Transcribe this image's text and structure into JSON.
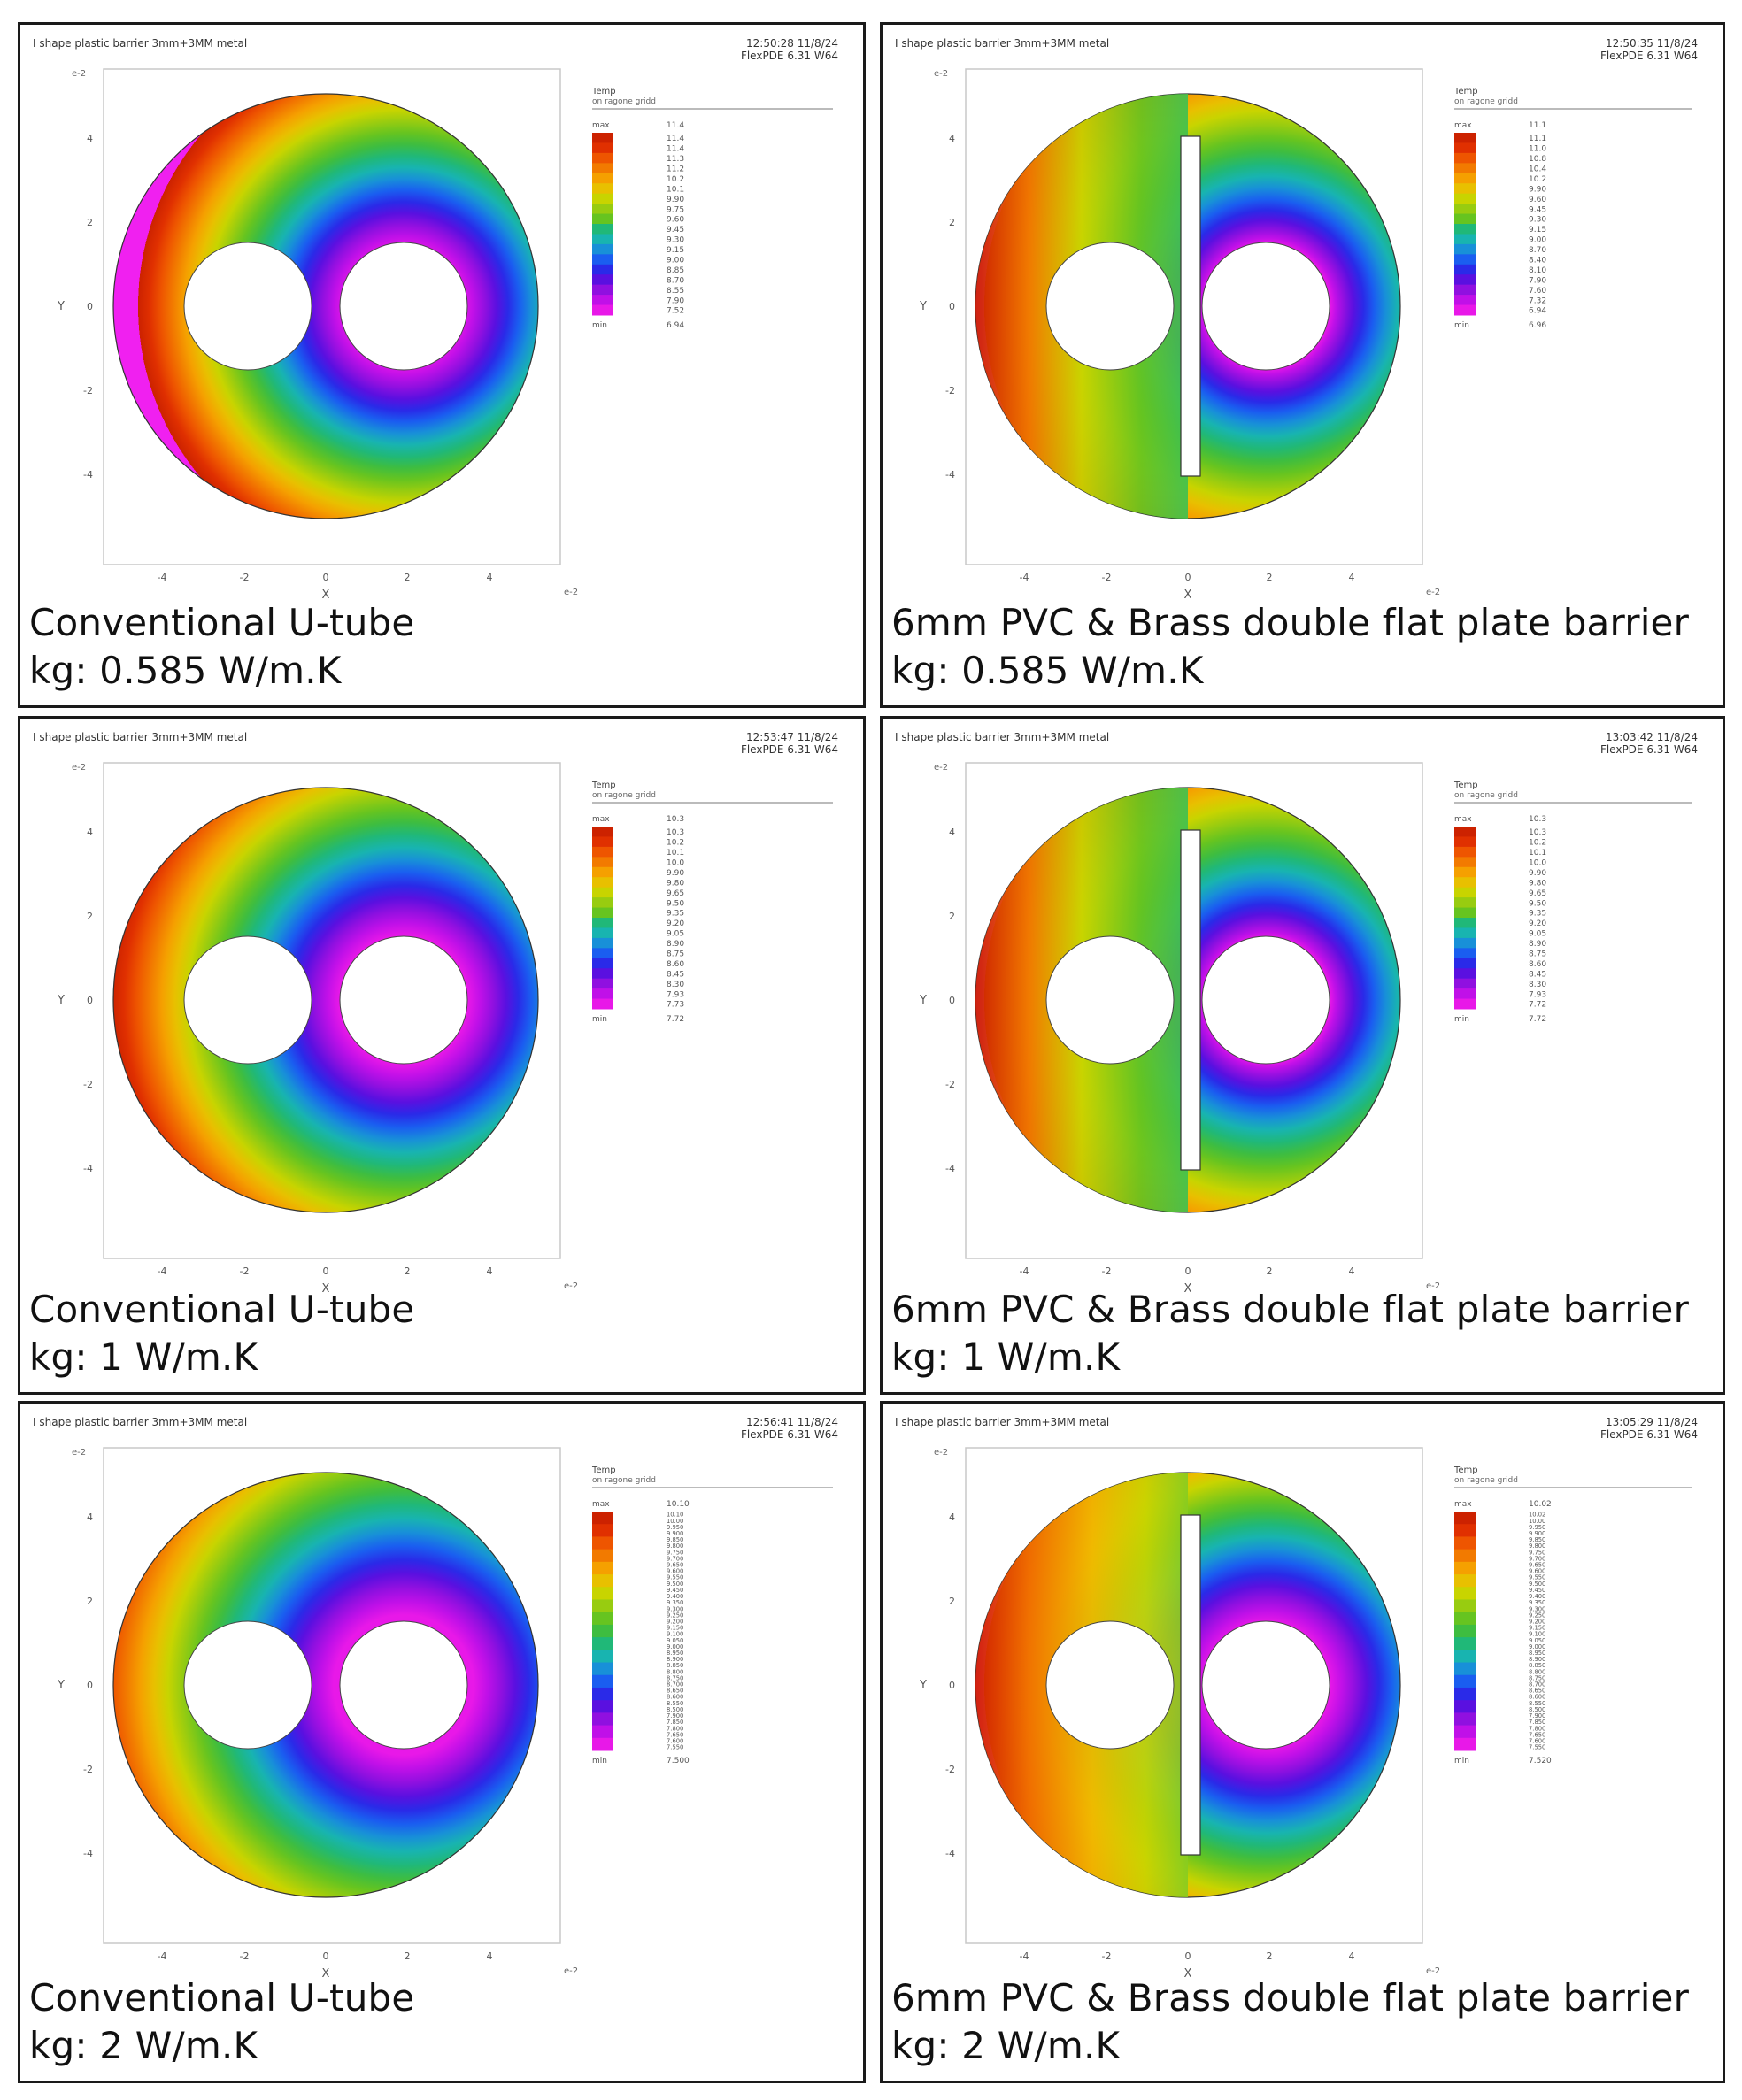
{
  "header_title": "I shape plastic barrier 3mm+3MM metal",
  "software": "FlexPDE 6.31 W64",
  "axis_x_label": "X",
  "axis_y_label": "Y",
  "axis_scale": "e-2",
  "legend_title": "Temp",
  "legend_subtitle": "on ragone gridd",
  "legend_max_label": "max",
  "legend_min_label": "min",
  "tick_values": [
    "-4",
    "-2",
    "0",
    "2",
    "4"
  ],
  "panels": [
    {
      "id": "p1",
      "timestamp": "12:50:28 11/8/24",
      "caption_line1": "Conventional U-tube",
      "caption_line2": "kg: 0.585 W/m.K",
      "barrier": false,
      "field": "cool-concentrated",
      "legend_values": [
        "11.4",
        "11.4",
        "11.3",
        "11.2",
        "10.2",
        "10.1",
        "9.90",
        "9.75",
        "9.60",
        "9.45",
        "9.30",
        "9.15",
        "9.00",
        "8.85",
        "8.70",
        "8.55",
        "7.90",
        "7.52"
      ],
      "legend_max": "11.4",
      "legend_min": "6.94"
    },
    {
      "id": "p2",
      "timestamp": "12:50:35 11/8/24",
      "caption_line1": "6mm PVC & Brass double flat plate barrier",
      "caption_line2": "kg: 0.585 W/m.K",
      "barrier": true,
      "field": "barrier-green",
      "legend_values": [
        "11.1",
        "11.0",
        "10.8",
        "10.4",
        "10.2",
        "9.90",
        "9.60",
        "9.45",
        "9.30",
        "9.15",
        "9.00",
        "8.70",
        "8.40",
        "8.10",
        "7.90",
        "7.60",
        "7.32",
        "6.94"
      ],
      "legend_max": "11.1",
      "legend_min": "6.96"
    },
    {
      "id": "p3",
      "timestamp": "12:53:47 11/8/24",
      "caption_line1": "Conventional U-tube",
      "caption_line2": "kg: 1 W/m.K",
      "barrier": false,
      "field": "cool-spread",
      "legend_values": [
        "10.3",
        "10.2",
        "10.1",
        "10.0",
        "9.90",
        "9.80",
        "9.65",
        "9.50",
        "9.35",
        "9.20",
        "9.05",
        "8.90",
        "8.75",
        "8.60",
        "8.45",
        "8.30",
        "7.93",
        "7.73"
      ],
      "legend_max": "10.3",
      "legend_min": "7.72"
    },
    {
      "id": "p4",
      "timestamp": "13:03:42 11/8/24",
      "caption_line1": "6mm PVC & Brass double flat plate barrier",
      "caption_line2": "kg: 1 W/m.K",
      "barrier": true,
      "field": "barrier-green",
      "legend_values": [
        "10.3",
        "10.2",
        "10.1",
        "10.0",
        "9.90",
        "9.80",
        "9.65",
        "9.50",
        "9.35",
        "9.20",
        "9.05",
        "8.90",
        "8.75",
        "8.60",
        "8.45",
        "8.30",
        "7.93",
        "7.72"
      ],
      "legend_max": "10.3",
      "legend_min": "7.72"
    },
    {
      "id": "p5",
      "timestamp": "12:56:41 11/8/24",
      "caption_line1": "Conventional U-tube",
      "caption_line2": "kg: 2 W/m.K",
      "barrier": false,
      "field": "cool-wide",
      "legend_values": [
        "10.10",
        "10.00",
        "9.950",
        "9.900",
        "9.850",
        "9.800",
        "9.750",
        "9.700",
        "9.650",
        "9.600",
        "9.550",
        "9.500",
        "9.450",
        "9.400",
        "9.350",
        "9.300",
        "9.250",
        "9.200",
        "9.150",
        "9.100",
        "9.050",
        "9.000",
        "8.950",
        "8.900",
        "8.850",
        "8.800",
        "8.750",
        "8.700",
        "8.650",
        "8.600",
        "8.550",
        "8.500",
        "7.900",
        "7.850",
        "7.800",
        "7.650",
        "7.600",
        "7.550"
      ],
      "legend_max": "10.10",
      "legend_min": "7.500"
    },
    {
      "id": "p6",
      "timestamp": "13:05:29 11/8/24",
      "caption_line1": "6mm PVC & Brass double flat plate barrier",
      "caption_line2": "kg: 2 W/m.K",
      "barrier": true,
      "field": "barrier-yellow",
      "legend_values": [
        "10.02",
        "10.00",
        "9.950",
        "9.900",
        "9.850",
        "9.800",
        "9.750",
        "9.700",
        "9.650",
        "9.600",
        "9.550",
        "9.500",
        "9.450",
        "9.400",
        "9.350",
        "9.300",
        "9.250",
        "9.200",
        "9.150",
        "9.100",
        "9.050",
        "9.000",
        "8.950",
        "8.900",
        "8.850",
        "8.800",
        "8.750",
        "8.700",
        "8.650",
        "8.600",
        "8.550",
        "8.500",
        "7.900",
        "7.850",
        "7.800",
        "7.650",
        "7.600",
        "7.550"
      ],
      "legend_max": "10.02",
      "legend_min": "7.520"
    }
  ]
}
